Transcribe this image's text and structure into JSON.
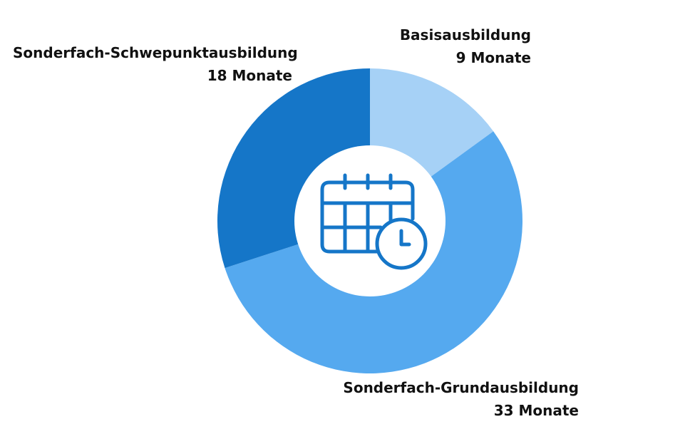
{
  "chart_data": {
    "type": "pie",
    "variant": "donut",
    "unit": "Monate",
    "slices": [
      {
        "label": "Basisausbildung",
        "value": 9,
        "value_text": "9 Monate",
        "color": "#a6d1f6"
      },
      {
        "label": "Sonderfach-Grundausbildung",
        "value": 33,
        "value_text": "33 Monate",
        "color": "#55a9ef"
      },
      {
        "label": "Sonderfach-Schwepunktausbildung",
        "value": 18,
        "value_text": "18 Monate",
        "color": "#1576c8"
      }
    ],
    "center_icon": "calendar-clock-icon",
    "icon_color": "#1576c8"
  }
}
